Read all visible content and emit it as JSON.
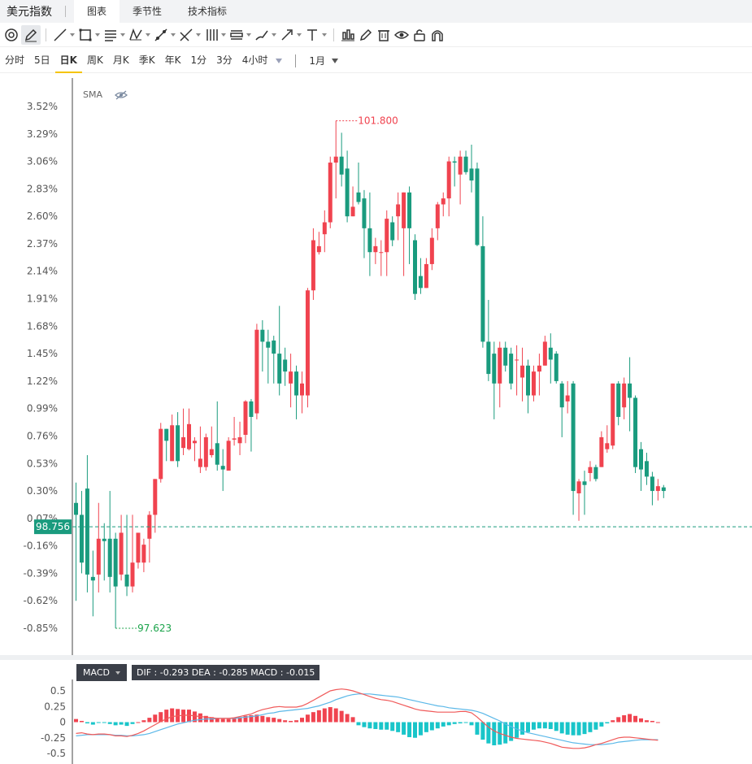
{
  "app": {
    "title": "美元指数"
  },
  "tabs": [
    {
      "label": "图表"
    },
    {
      "label": "季节性"
    },
    {
      "label": "技术指标"
    }
  ],
  "toolbar": {
    "icons": [
      "magnet-icon",
      "pencil-icon",
      "line-icon",
      "rectangle-icon",
      "fib-icon",
      "pattern-icon",
      "path-icon",
      "cross-lines-icon",
      "parallel-icon",
      "measure-icon",
      "brush-icon",
      "arrow-icon",
      "text-icon",
      "chart-settings-icon",
      "edit-icon",
      "trash-icon",
      "eye-icon",
      "lock-icon",
      "magnet-off-icon"
    ]
  },
  "periods": [
    {
      "label": "分时"
    },
    {
      "label": "5日"
    },
    {
      "label": "日K"
    },
    {
      "label": "周K"
    },
    {
      "label": "月K"
    },
    {
      "label": "季K"
    },
    {
      "label": "年K"
    },
    {
      "label": "1分"
    },
    {
      "label": "3分"
    },
    {
      "label": "4小时"
    }
  ],
  "range": {
    "label": "1月"
  },
  "indicator": {
    "sma_label": "SMA",
    "macd_label": "MACD",
    "macd_values": "DIF : -0.293  DEA : -0.285  MACD : -0.015"
  },
  "colors": {
    "up": "#f0434f",
    "down": "#1a9b7e",
    "dif": "#f05a5a",
    "dea": "#5bb8e8",
    "macd_up": "#f0434f",
    "macd_down": "#19c5c9"
  },
  "chart_data": {
    "type": "candlestick",
    "y_axis_ticks": [
      "3.52%",
      "3.29%",
      "3.06%",
      "2.83%",
      "2.60%",
      "2.37%",
      "2.14%",
      "1.91%",
      "1.68%",
      "1.45%",
      "1.22%",
      "0.99%",
      "0.76%",
      "0.53%",
      "0.30%",
      "0.07%",
      "-0.16%",
      "-0.39%",
      "-0.62%",
      "-0.85%"
    ],
    "ylim_pct": [
      -0.85,
      3.52
    ],
    "base_price": 98.756,
    "current_label": "98.756",
    "max_label": "101.800",
    "min_label": "97.623",
    "candles": [
      [
        0.2,
        0.1,
        0.37,
        -0.62
      ],
      [
        0.1,
        -0.3,
        0.3,
        -0.39
      ],
      [
        0.32,
        -0.4,
        0.6,
        -0.55
      ],
      [
        -0.42,
        -0.45,
        -0.2,
        -0.75
      ],
      [
        -0.4,
        -0.1,
        0.2,
        -0.55
      ],
      [
        -0.1,
        -0.12,
        0.03,
        -0.45
      ],
      [
        -0.1,
        -0.42,
        0.3,
        -0.55
      ],
      [
        -0.1,
        -0.5,
        -0.05,
        -0.85
      ],
      [
        -0.4,
        -0.05,
        0.1,
        -0.45
      ],
      [
        -0.4,
        -0.5,
        0.1,
        -0.58
      ],
      [
        -0.5,
        -0.3,
        0.1,
        -0.55
      ],
      [
        -0.3,
        -0.05,
        -0.05,
        -0.35
      ],
      [
        -0.3,
        -0.15,
        -0.1,
        -0.38
      ],
      [
        -0.1,
        0.1,
        0.13,
        -0.3
      ],
      [
        0.1,
        0.4,
        0.4,
        -0.05
      ],
      [
        0.4,
        0.82,
        0.87,
        0.37
      ],
      [
        0.82,
        0.72,
        0.82,
        0.55
      ],
      [
        0.55,
        0.85,
        0.94,
        0.55
      ],
      [
        0.85,
        0.55,
        0.96,
        0.5
      ],
      [
        0.66,
        0.75,
        0.99,
        0.6
      ],
      [
        0.65,
        0.86,
        0.99,
        0.64
      ],
      [
        0.7,
        0.72,
        0.75,
        0.55
      ],
      [
        0.5,
        0.57,
        0.84,
        0.45
      ],
      [
        0.5,
        0.75,
        0.78,
        0.47
      ],
      [
        0.6,
        0.65,
        0.84,
        0.58
      ],
      [
        0.7,
        0.52,
        1.05,
        0.47
      ],
      [
        0.51,
        0.48,
        0.65,
        0.3
      ],
      [
        0.47,
        0.72,
        0.75,
        0.5
      ],
      [
        0.73,
        0.74,
        0.92,
        0.68
      ],
      [
        0.7,
        0.75,
        0.88,
        0.6
      ],
      [
        0.77,
        1.05,
        1.06,
        0.7
      ],
      [
        1.05,
        0.92,
        1.07,
        0.63
      ],
      [
        0.95,
        1.65,
        1.7,
        0.9
      ],
      [
        1.65,
        1.55,
        1.73,
        1.3
      ],
      [
        1.55,
        1.5,
        1.65,
        1.2
      ],
      [
        1.56,
        1.45,
        1.6,
        1.2
      ],
      [
        1.45,
        1.2,
        1.85,
        1.1
      ],
      [
        1.4,
        1.3,
        1.5,
        1.18
      ],
      [
        1.2,
        1.3,
        1.45,
        1.0
      ],
      [
        1.3,
        1.1,
        1.35,
        0.9
      ],
      [
        1.1,
        1.2,
        1.3,
        0.95
      ],
      [
        1.1,
        1.98,
        2.0,
        1.0
      ],
      [
        1.98,
        2.4,
        2.5,
        1.9
      ],
      [
        2.3,
        2.35,
        2.47,
        2.28
      ],
      [
        2.45,
        2.55,
        2.65,
        2.3
      ],
      [
        2.55,
        3.05,
        3.1,
        2.5
      ],
      [
        3.05,
        3.1,
        3.4,
        2.75
      ],
      [
        3.1,
        2.95,
        3.3,
        2.85
      ],
      [
        3.0,
        2.6,
        3.15,
        2.55
      ],
      [
        2.6,
        2.68,
        2.85,
        2.6
      ],
      [
        2.8,
        2.72,
        3.05,
        2.7
      ],
      [
        2.75,
        2.5,
        2.82,
        2.25
      ],
      [
        2.5,
        2.3,
        2.8,
        2.1
      ],
      [
        2.3,
        2.35,
        2.42,
        2.2
      ],
      [
        2.3,
        2.3,
        2.4,
        2.1
      ],
      [
        2.3,
        2.58,
        2.65,
        2.1
      ],
      [
        2.55,
        2.4,
        2.6,
        2.35
      ],
      [
        2.6,
        2.7,
        2.8,
        2.4
      ],
      [
        2.5,
        2.8,
        2.8,
        2.1
      ],
      [
        2.8,
        2.5,
        2.85,
        2.2
      ],
      [
        2.4,
        1.95,
        2.45,
        1.9
      ],
      [
        2.1,
        2.0,
        2.25,
        1.95
      ],
      [
        2.0,
        2.2,
        2.25,
        2.0
      ],
      [
        2.2,
        2.42,
        2.5,
        2.15
      ],
      [
        2.5,
        2.7,
        2.72,
        2.4
      ],
      [
        2.7,
        2.75,
        2.8,
        2.6
      ],
      [
        2.75,
        3.06,
        3.1,
        2.6
      ],
      [
        3.06,
        3.05,
        3.1,
        2.85
      ],
      [
        2.95,
        3.1,
        3.15,
        2.7
      ],
      [
        3.1,
        2.97,
        3.15,
        2.95
      ],
      [
        3.0,
        2.9,
        3.2,
        2.8
      ],
      [
        3.0,
        2.36,
        3.05,
        2.35
      ],
      [
        2.35,
        1.55,
        2.6,
        1.5
      ],
      [
        1.55,
        1.28,
        1.9,
        1.22
      ],
      [
        1.45,
        1.2,
        1.55,
        0.9
      ],
      [
        1.2,
        1.5,
        1.55,
        1.0
      ],
      [
        1.5,
        1.35,
        1.55,
        1.3
      ],
      [
        1.45,
        1.2,
        1.5,
        1.15
      ],
      [
        1.4,
        1.4,
        1.52,
        1.1
      ],
      [
        1.25,
        1.35,
        1.5,
        1.05
      ],
      [
        1.35,
        1.1,
        1.4,
        0.95
      ],
      [
        1.1,
        1.3,
        1.35,
        1.05
      ],
      [
        1.3,
        1.35,
        1.45,
        1.1
      ],
      [
        1.35,
        1.55,
        1.6,
        1.35
      ],
      [
        1.5,
        1.4,
        1.62,
        1.2
      ],
      [
        1.45,
        1.22,
        1.47,
        1.2
      ],
      [
        1.2,
        1.0,
        1.22,
        0.75
      ],
      [
        1.05,
        1.1,
        1.22,
        0.95
      ],
      [
        1.2,
        0.3,
        1.22,
        0.1
      ],
      [
        0.28,
        0.38,
        0.4,
        0.05
      ],
      [
        0.38,
        0.35,
        0.47,
        0.1
      ],
      [
        0.45,
        0.5,
        0.55,
        0.38
      ],
      [
        0.5,
        0.4,
        0.52,
        0.38
      ],
      [
        0.5,
        0.75,
        0.8,
        0.5
      ],
      [
        0.65,
        0.7,
        0.85,
        0.62
      ],
      [
        0.68,
        1.2,
        1.2,
        0.65
      ],
      [
        1.2,
        0.92,
        1.22,
        0.85
      ],
      [
        1.0,
        1.2,
        1.25,
        0.9
      ],
      [
        1.2,
        1.08,
        1.42,
        0.8
      ],
      [
        1.08,
        0.5,
        1.1,
        0.45
      ],
      [
        0.65,
        0.48,
        0.71,
        0.3
      ],
      [
        0.55,
        0.42,
        0.62,
        0.35
      ],
      [
        0.42,
        0.3,
        0.46,
        0.18
      ],
      [
        0.3,
        0.34,
        0.4,
        0.22
      ],
      [
        0.33,
        0.3,
        0.35,
        0.24
      ]
    ],
    "macd_axis_ticks": [
      "0.5",
      "0.25",
      "0",
      "-0.25",
      "-0.5"
    ],
    "macd_ylim": [
      -0.5,
      0.6
    ],
    "macd_hist": [
      0.05,
      0.02,
      -0.02,
      -0.04,
      -0.01,
      -0.01,
      -0.03,
      -0.05,
      -0.04,
      -0.06,
      -0.03,
      0.0,
      0.03,
      0.07,
      0.12,
      0.16,
      0.2,
      0.22,
      0.21,
      0.2,
      0.2,
      0.17,
      0.14,
      0.1,
      0.08,
      0.06,
      0.05,
      0.05,
      0.06,
      0.08,
      0.1,
      0.11,
      0.12,
      0.1,
      0.08,
      0.07,
      0.05,
      0.03,
      0.02,
      0.03,
      0.07,
      0.12,
      0.16,
      0.19,
      0.22,
      0.24,
      0.22,
      0.18,
      0.13,
      0.08,
      -0.05,
      -0.08,
      -0.1,
      -0.11,
      -0.12,
      -0.12,
      -0.14,
      -0.16,
      -0.2,
      -0.24,
      -0.25,
      -0.21,
      -0.16,
      -0.13,
      -0.1,
      -0.07,
      -0.05,
      -0.03,
      -0.02,
      -0.01,
      -0.05,
      -0.2,
      -0.28,
      -0.34,
      -0.37,
      -0.36,
      -0.34,
      -0.3,
      -0.25,
      -0.2,
      -0.16,
      -0.12,
      -0.1,
      -0.1,
      -0.11,
      -0.14,
      -0.18,
      -0.2,
      -0.21,
      -0.21,
      -0.19,
      -0.16,
      -0.12,
      -0.07,
      -0.02,
      0.03,
      0.08,
      0.11,
      0.13,
      0.1,
      0.06,
      0.03,
      0.02,
      0.0
    ],
    "macd_dif": [
      -0.18,
      -0.17,
      -0.19,
      -0.2,
      -0.19,
      -0.19,
      -0.2,
      -0.22,
      -0.22,
      -0.23,
      -0.21,
      -0.18,
      -0.14,
      -0.09,
      -0.04,
      0.01,
      0.05,
      0.09,
      0.1,
      0.11,
      0.11,
      0.1,
      0.09,
      0.08,
      0.07,
      0.06,
      0.06,
      0.06,
      0.07,
      0.09,
      0.11,
      0.13,
      0.17,
      0.2,
      0.22,
      0.24,
      0.25,
      0.24,
      0.24,
      0.24,
      0.26,
      0.3,
      0.35,
      0.4,
      0.45,
      0.5,
      0.52,
      0.53,
      0.52,
      0.5,
      0.47,
      0.44,
      0.41,
      0.38,
      0.36,
      0.35,
      0.33,
      0.3,
      0.27,
      0.24,
      0.21,
      0.19,
      0.18,
      0.17,
      0.16,
      0.16,
      0.16,
      0.16,
      0.17,
      0.17,
      0.15,
      0.08,
      0.0,
      -0.08,
      -0.14,
      -0.18,
      -0.21,
      -0.24,
      -0.26,
      -0.27,
      -0.28,
      -0.29,
      -0.3,
      -0.32,
      -0.34,
      -0.37,
      -0.4,
      -0.41,
      -0.42,
      -0.42,
      -0.41,
      -0.39,
      -0.36,
      -0.34,
      -0.31,
      -0.28,
      -0.25,
      -0.24,
      -0.24,
      -0.25,
      -0.26,
      -0.27,
      -0.28,
      -0.29
    ],
    "macd_dea": [
      -0.22,
      -0.21,
      -0.2,
      -0.2,
      -0.2,
      -0.2,
      -0.2,
      -0.21,
      -0.21,
      -0.22,
      -0.22,
      -0.21,
      -0.2,
      -0.18,
      -0.15,
      -0.12,
      -0.09,
      -0.06,
      -0.03,
      -0.01,
      0.01,
      0.03,
      0.04,
      0.05,
      0.05,
      0.06,
      0.06,
      0.06,
      0.06,
      0.07,
      0.08,
      0.09,
      0.1,
      0.12,
      0.14,
      0.15,
      0.17,
      0.18,
      0.19,
      0.2,
      0.21,
      0.22,
      0.24,
      0.26,
      0.29,
      0.32,
      0.36,
      0.39,
      0.42,
      0.44,
      0.45,
      0.45,
      0.45,
      0.44,
      0.43,
      0.42,
      0.41,
      0.4,
      0.38,
      0.36,
      0.34,
      0.32,
      0.3,
      0.28,
      0.26,
      0.25,
      0.23,
      0.22,
      0.21,
      0.2,
      0.19,
      0.17,
      0.14,
      0.1,
      0.06,
      0.02,
      -0.03,
      -0.07,
      -0.11,
      -0.14,
      -0.17,
      -0.19,
      -0.21,
      -0.23,
      -0.25,
      -0.27,
      -0.29,
      -0.31,
      -0.33,
      -0.34,
      -0.35,
      -0.36,
      -0.36,
      -0.36,
      -0.35,
      -0.34,
      -0.32,
      -0.31,
      -0.3,
      -0.29,
      -0.28,
      -0.28,
      -0.28,
      -0.28
    ]
  }
}
